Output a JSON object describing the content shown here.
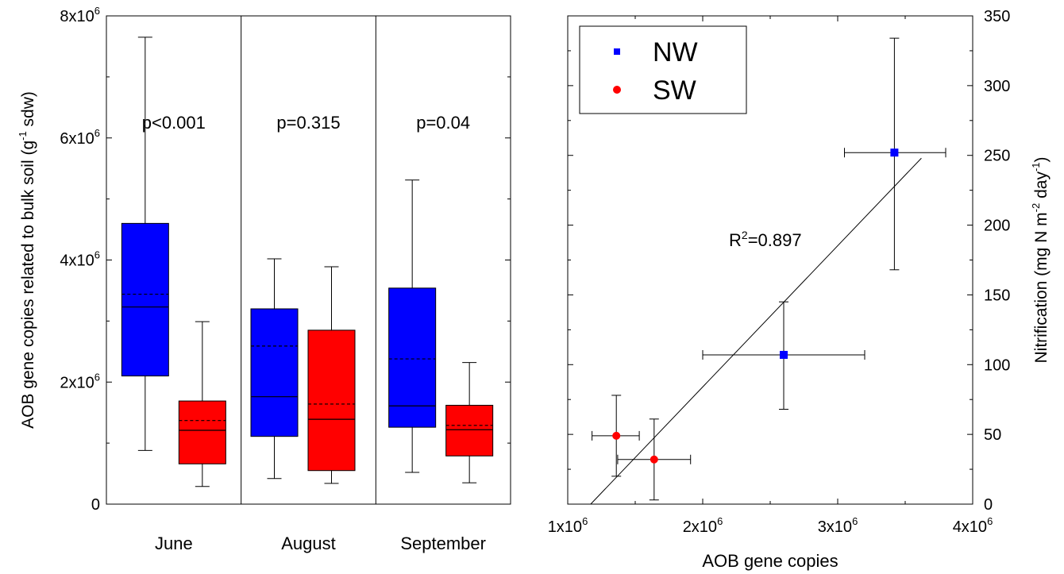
{
  "chart_data": [
    {
      "type": "box",
      "ylabel": "AOB gene copies related to bulk soil (g",
      "ylabel_sup": "-1",
      "ylabel_tail": " sdw)",
      "ylim": [
        0,
        8000000
      ],
      "yticks": [
        {
          "value": 0,
          "base": "0",
          "exp": ""
        },
        {
          "value": 2000000,
          "base": "2x10",
          "exp": "6"
        },
        {
          "value": 4000000,
          "base": "4x10",
          "exp": "6"
        },
        {
          "value": 6000000,
          "base": "6x10",
          "exp": "6"
        },
        {
          "value": 8000000,
          "base": "8x10",
          "exp": "6"
        }
      ],
      "categories": [
        "June",
        "August",
        "September"
      ],
      "pvalues": [
        "p<0.001",
        "p=0.315",
        "p=0.04"
      ],
      "series": [
        {
          "color": "#0000ff",
          "boxes": [
            {
              "min": 880000,
              "q1": 2100000,
              "median": 3230000,
              "mean": 3440000,
              "q3": 4600000,
              "max": 7650000
            },
            {
              "min": 420000,
              "q1": 1110000,
              "median": 1760000,
              "mean": 2590000,
              "q3": 3200000,
              "max": 4020000
            },
            {
              "min": 520000,
              "q1": 1260000,
              "median": 1610000,
              "mean": 2380000,
              "q3": 3540000,
              "max": 5310000
            }
          ]
        },
        {
          "color": "#ff0000",
          "boxes": [
            {
              "min": 290000,
              "q1": 660000,
              "median": 1210000,
              "mean": 1370000,
              "q3": 1690000,
              "max": 2990000
            },
            {
              "min": 340000,
              "q1": 550000,
              "median": 1390000,
              "mean": 1640000,
              "q3": 2850000,
              "max": 3890000
            },
            {
              "min": 350000,
              "q1": 790000,
              "median": 1220000,
              "mean": 1290000,
              "q3": 1620000,
              "max": 2320000
            }
          ]
        }
      ]
    },
    {
      "type": "scatter",
      "xlabel": "AOB gene copies",
      "ylabel": "Nitrification (mg N m",
      "ylabel_sup1": "-2",
      "ylabel_mid": " day",
      "ylabel_sup2": "-1",
      "ylabel_tail": ")",
      "xlim": [
        1000000,
        4000000
      ],
      "ylim": [
        0,
        350
      ],
      "xticks": [
        {
          "value": 1000000,
          "base": "1x10",
          "exp": "6"
        },
        {
          "value": 2000000,
          "base": "2x10",
          "exp": "6"
        },
        {
          "value": 3000000,
          "base": "3x10",
          "exp": "6"
        },
        {
          "value": 4000000,
          "base": "4x10",
          "exp": "6"
        }
      ],
      "yticks": [
        0,
        50,
        100,
        150,
        200,
        250,
        300,
        350
      ],
      "legend": {
        "placement": "top-left",
        "entries": [
          {
            "label": "NW",
            "marker": "square",
            "color": "#0000ff"
          },
          {
            "label": "SW",
            "marker": "circle",
            "color": "#ff0000"
          }
        ]
      },
      "annotation": {
        "text": "R",
        "sup": "2",
        "tail": "=0.897"
      },
      "fit_line": {
        "x": [
          1170000,
          3620000
        ],
        "y": [
          0,
          248
        ]
      },
      "series": [
        {
          "name": "NW",
          "marker": "square",
          "color": "#0000ff",
          "points": [
            {
              "x": 3420000,
              "y": 252,
              "xerr": [
                3050000,
                3800000
              ],
              "yerr": [
                168,
                334
              ]
            },
            {
              "x": 2600000,
              "y": 107,
              "xerr": [
                2000000,
                3200000
              ],
              "yerr": [
                68,
                145
              ]
            }
          ]
        },
        {
          "name": "SW",
          "marker": "circle",
          "color": "#ff0000",
          "points": [
            {
              "x": 1360000,
              "y": 49,
              "xerr": [
                1180000,
                1530000
              ],
              "yerr": [
                20,
                78
              ]
            },
            {
              "x": 1640000,
              "y": 32,
              "xerr": [
                1370000,
                1910000
              ],
              "yerr": [
                3,
                61
              ]
            }
          ]
        }
      ]
    }
  ]
}
